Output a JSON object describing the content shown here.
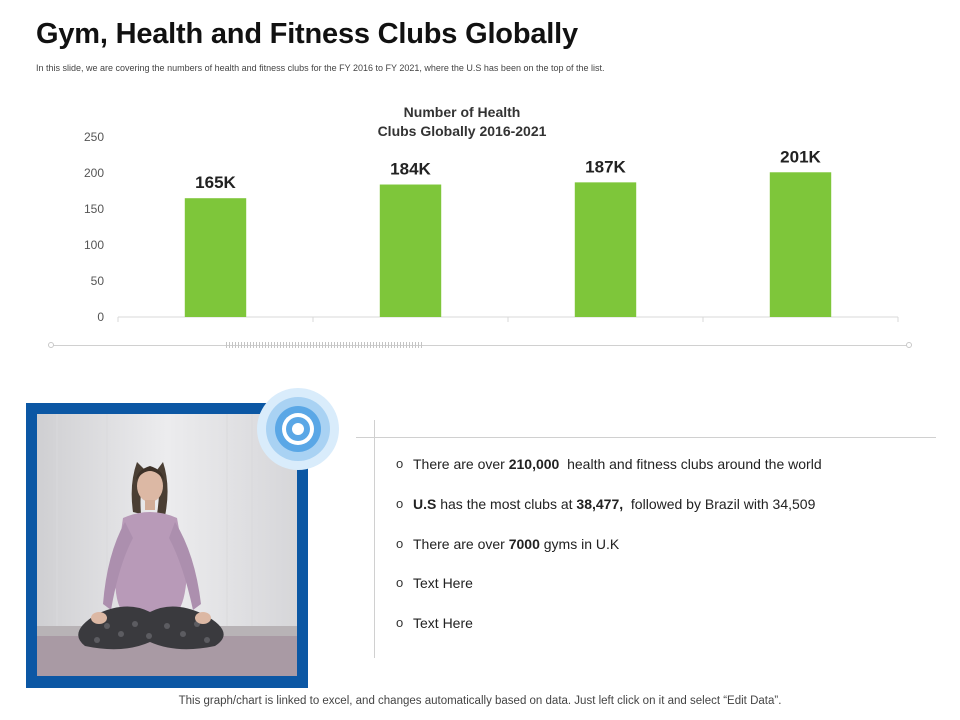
{
  "page": {
    "title": "Gym, Health and Fitness Clubs Globally",
    "subtitle": "In this slide, we are covering the numbers of health and fitness clubs for the FY 2016 to FY 2021, where the U.S has been on the top of the list.",
    "footer": "This graph/chart is linked to excel, and changes automatically based on data. Just left click on it and select “Edit Data”."
  },
  "chart_data": {
    "type": "bar",
    "title": "Number of Health Clubs Globally 2016-2021",
    "title_lines": [
      "Number of Health",
      "Clubs Globally 2016-2021"
    ],
    "categories": [
      "",
      "",
      "",
      ""
    ],
    "values": [
      165,
      184,
      187,
      201
    ],
    "data_labels": [
      "165K",
      "184K",
      "187K",
      "201K"
    ],
    "xlabel": "",
    "ylabel": "",
    "ylim": [
      0,
      250
    ],
    "yticks": [
      0,
      50,
      100,
      150,
      200,
      250
    ],
    "grid": false,
    "legend": "none",
    "bar_color": "#7ec63a"
  },
  "image": {
    "frame_color": "#0b57a4",
    "target_icon": "concentric-circles-icon",
    "target_color": "#5aa7e6"
  },
  "bullets": {
    "marker": "o",
    "items": [
      {
        "segments": [
          {
            "text": "There are over ",
            "bold": false
          },
          {
            "text": "210,000",
            "bold": true
          },
          {
            "text": "  health and fitness clubs around the world",
            "bold": false
          }
        ]
      },
      {
        "segments": [
          {
            "text": "U.S",
            "bold": true
          },
          {
            "text": " has the most clubs at ",
            "bold": false
          },
          {
            "text": "38,477,",
            "bold": true
          },
          {
            "text": "  followed by Brazil with 34,509",
            "bold": false
          }
        ]
      },
      {
        "segments": [
          {
            "text": "There are over ",
            "bold": false
          },
          {
            "text": "7000",
            "bold": true
          },
          {
            "text": " gyms in U.K",
            "bold": false
          }
        ]
      },
      {
        "segments": [
          {
            "text": "Text Here",
            "bold": false
          }
        ]
      },
      {
        "segments": [
          {
            "text": "Text Here",
            "bold": false
          }
        ]
      }
    ]
  }
}
